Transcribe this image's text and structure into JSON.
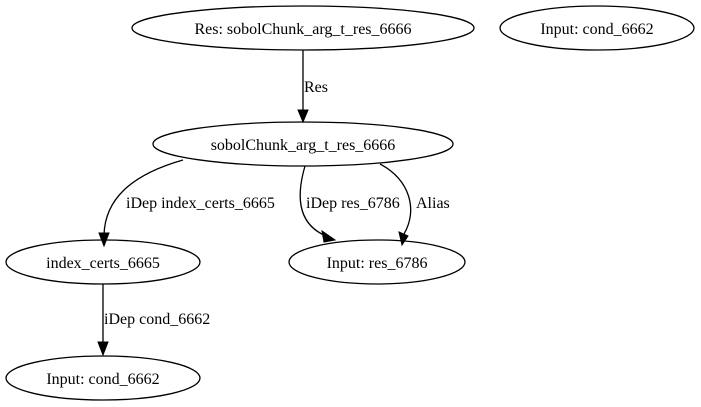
{
  "graph": {
    "nodes": {
      "res": "Res: sobolChunk_arg_t_res_6666",
      "input_cond_top": "Input: cond_6662",
      "sobol": "sobolChunk_arg_t_res_6666",
      "index_certs": "index_certs_6665",
      "input_res": "Input: res_6786",
      "input_cond_bottom": "Input: cond_6662"
    },
    "edges": {
      "res_to_sobol": "Res",
      "sobol_to_index": "iDep index_certs_6665",
      "sobol_to_input_res_idep": "iDep res_6786",
      "sobol_to_input_res_alias": "Alias",
      "index_to_cond": "iDep cond_6662"
    }
  }
}
